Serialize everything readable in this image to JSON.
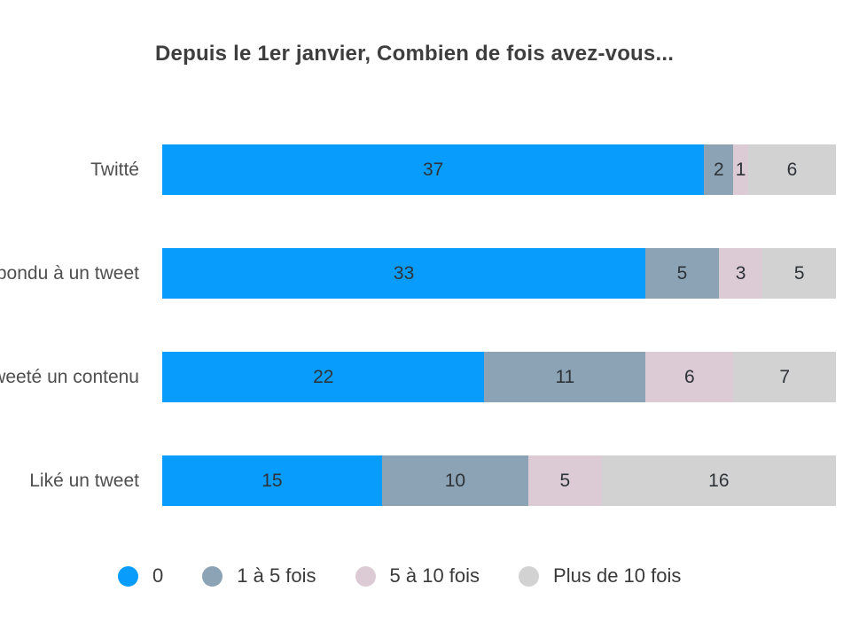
{
  "title": "Depuis le 1er janvier, Combien de fois avez-vous...",
  "chart_data": {
    "type": "bar",
    "orientation": "horizontal",
    "stacked": true,
    "title": "Depuis le 1er janvier, Combien de fois avez-vous...",
    "categories": [
      "Twitté",
      "Répondu à un tweet",
      "Retweeté un contenu",
      "Liké un tweet"
    ],
    "series": [
      {
        "name": "0",
        "color": "#089dfc",
        "values": [
          37,
          33,
          22,
          15
        ]
      },
      {
        "name": "1 à 5 fois",
        "color": "#8ba3b4",
        "values": [
          2,
          5,
          11,
          10
        ]
      },
      {
        "name": "5 à 10 fois",
        "color": "#dccad4",
        "values": [
          1,
          3,
          6,
          5
        ]
      },
      {
        "name": "Plus de 10 fois",
        "color": "#d2d2d2",
        "values": [
          6,
          5,
          7,
          16
        ]
      }
    ],
    "row_total": 46,
    "value_labels": "inside-center",
    "legend_position": "bottom",
    "grid": false,
    "axes_visible": false
  }
}
